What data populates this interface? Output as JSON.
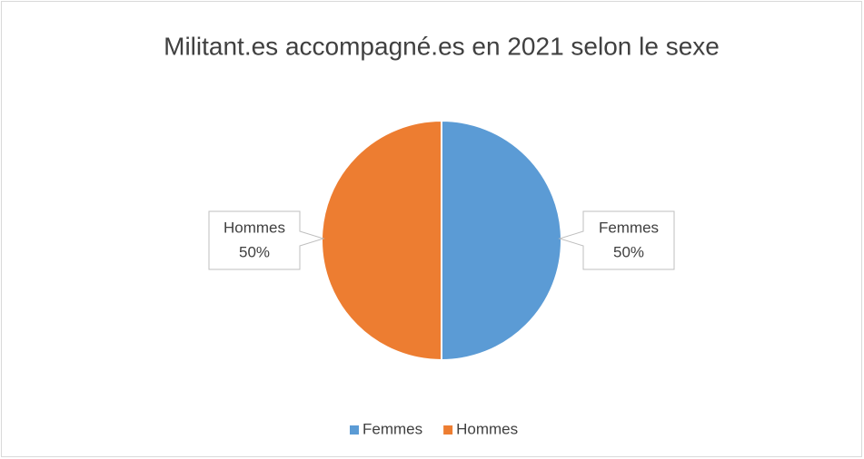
{
  "chart_data": {
    "type": "pie",
    "title": "Militant.es accompagné.es en 2021 selon le sexe",
    "categories": [
      "Femmes",
      "Hommes"
    ],
    "values": [
      50,
      50
    ],
    "value_labels": [
      "50%",
      "50%"
    ],
    "colors": [
      "#5b9bd5",
      "#ed7d31"
    ],
    "legend": "bottom"
  }
}
